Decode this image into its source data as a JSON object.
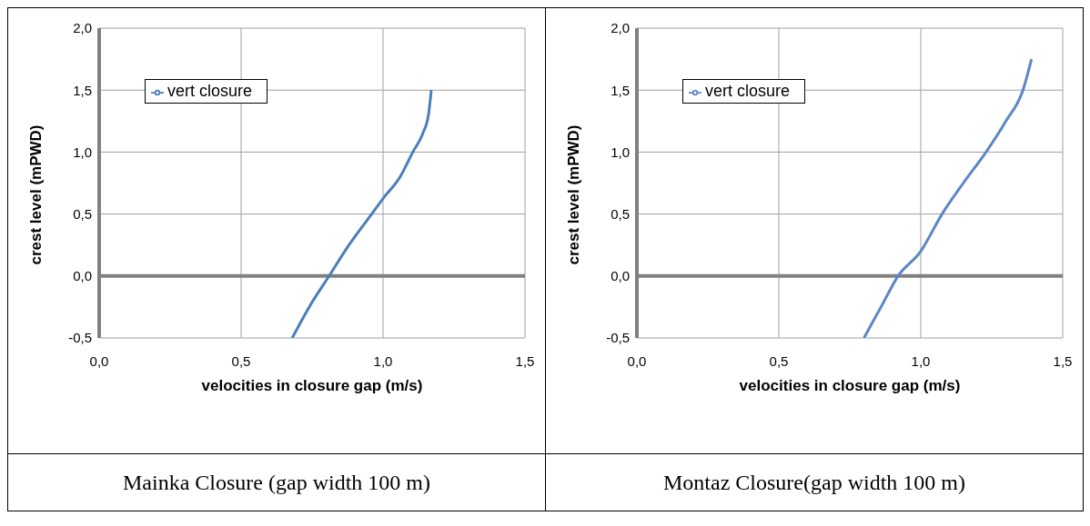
{
  "chart_data": [
    {
      "type": "line",
      "xlabel": "velocities in closure gap (m/s)",
      "ylabel": "crest level (mPWD)",
      "series": [
        {
          "name": "vert closure",
          "color": "#4a7ebb",
          "x": [
            0.68,
            0.74,
            0.81,
            0.88,
            0.96,
            1.0,
            1.06,
            1.105,
            1.14,
            1.16,
            1.17
          ],
          "values": [
            -0.5,
            -0.25,
            0.0,
            0.25,
            0.5,
            0.625,
            0.8,
            1.0,
            1.15,
            1.3,
            1.5
          ]
        }
      ],
      "xlim": [
        0,
        1.5
      ],
      "xticks": [
        {
          "value": 0,
          "label": "0,0"
        },
        {
          "value": 0.5,
          "label": "0,5"
        },
        {
          "value": 1,
          "label": "1,0"
        },
        {
          "value": 1.5,
          "label": "1,5"
        }
      ],
      "ylim": [
        -0.5,
        2
      ],
      "yticks": [
        {
          "value": -0.5,
          "label": "-0,5"
        },
        {
          "value": 0,
          "label": "0,0"
        },
        {
          "value": 0.5,
          "label": "0,5"
        },
        {
          "value": 1,
          "label": "1,0"
        },
        {
          "value": 1.5,
          "label": "1,5"
        },
        {
          "value": 2,
          "label": "2,0"
        }
      ],
      "ref_lines": [
        {
          "axis": "y",
          "value": 0,
          "color": "#808080"
        }
      ],
      "grid": true,
      "legend": "top left",
      "line_style": "solid",
      "marker": "none",
      "annotations": [
        "Mainka Closure (gap width 100 m)"
      ]
    },
    {
      "type": "line",
      "xlabel": "velocities in closure gap (m/s)",
      "ylabel": "crest level (mPWD)",
      "series": [
        {
          "name": "vert closure",
          "color": "#5b86c8",
          "x": [
            0.8,
            0.86,
            0.92,
            1.0,
            1.075,
            1.15,
            1.23,
            1.3,
            1.36,
            1.39
          ],
          "values": [
            -0.5,
            -0.25,
            0.0,
            0.2,
            0.5,
            0.75,
            1.0,
            1.25,
            1.5,
            1.75
          ]
        }
      ],
      "xlim": [
        0,
        1.5
      ],
      "xticks": [
        {
          "value": 0,
          "label": "0,0"
        },
        {
          "value": 0.5,
          "label": "0,5"
        },
        {
          "value": 1,
          "label": "1,0"
        },
        {
          "value": 1.5,
          "label": "1,5"
        }
      ],
      "ylim": [
        -0.5,
        2
      ],
      "yticks": [
        {
          "value": -0.5,
          "label": "-0,5"
        },
        {
          "value": 0,
          "label": "0,0"
        },
        {
          "value": 0.5,
          "label": "0,5"
        },
        {
          "value": 1,
          "label": "1,0"
        },
        {
          "value": 1.5,
          "label": "1,5"
        },
        {
          "value": 2,
          "label": "2,0"
        }
      ],
      "ref_lines": [
        {
          "axis": "y",
          "value": 0,
          "color": "#808080"
        }
      ],
      "grid": true,
      "legend": "top left",
      "line_style": "solid",
      "marker": "none",
      "annotations": [
        "Montaz Closure(gap width 100 m)"
      ]
    }
  ]
}
